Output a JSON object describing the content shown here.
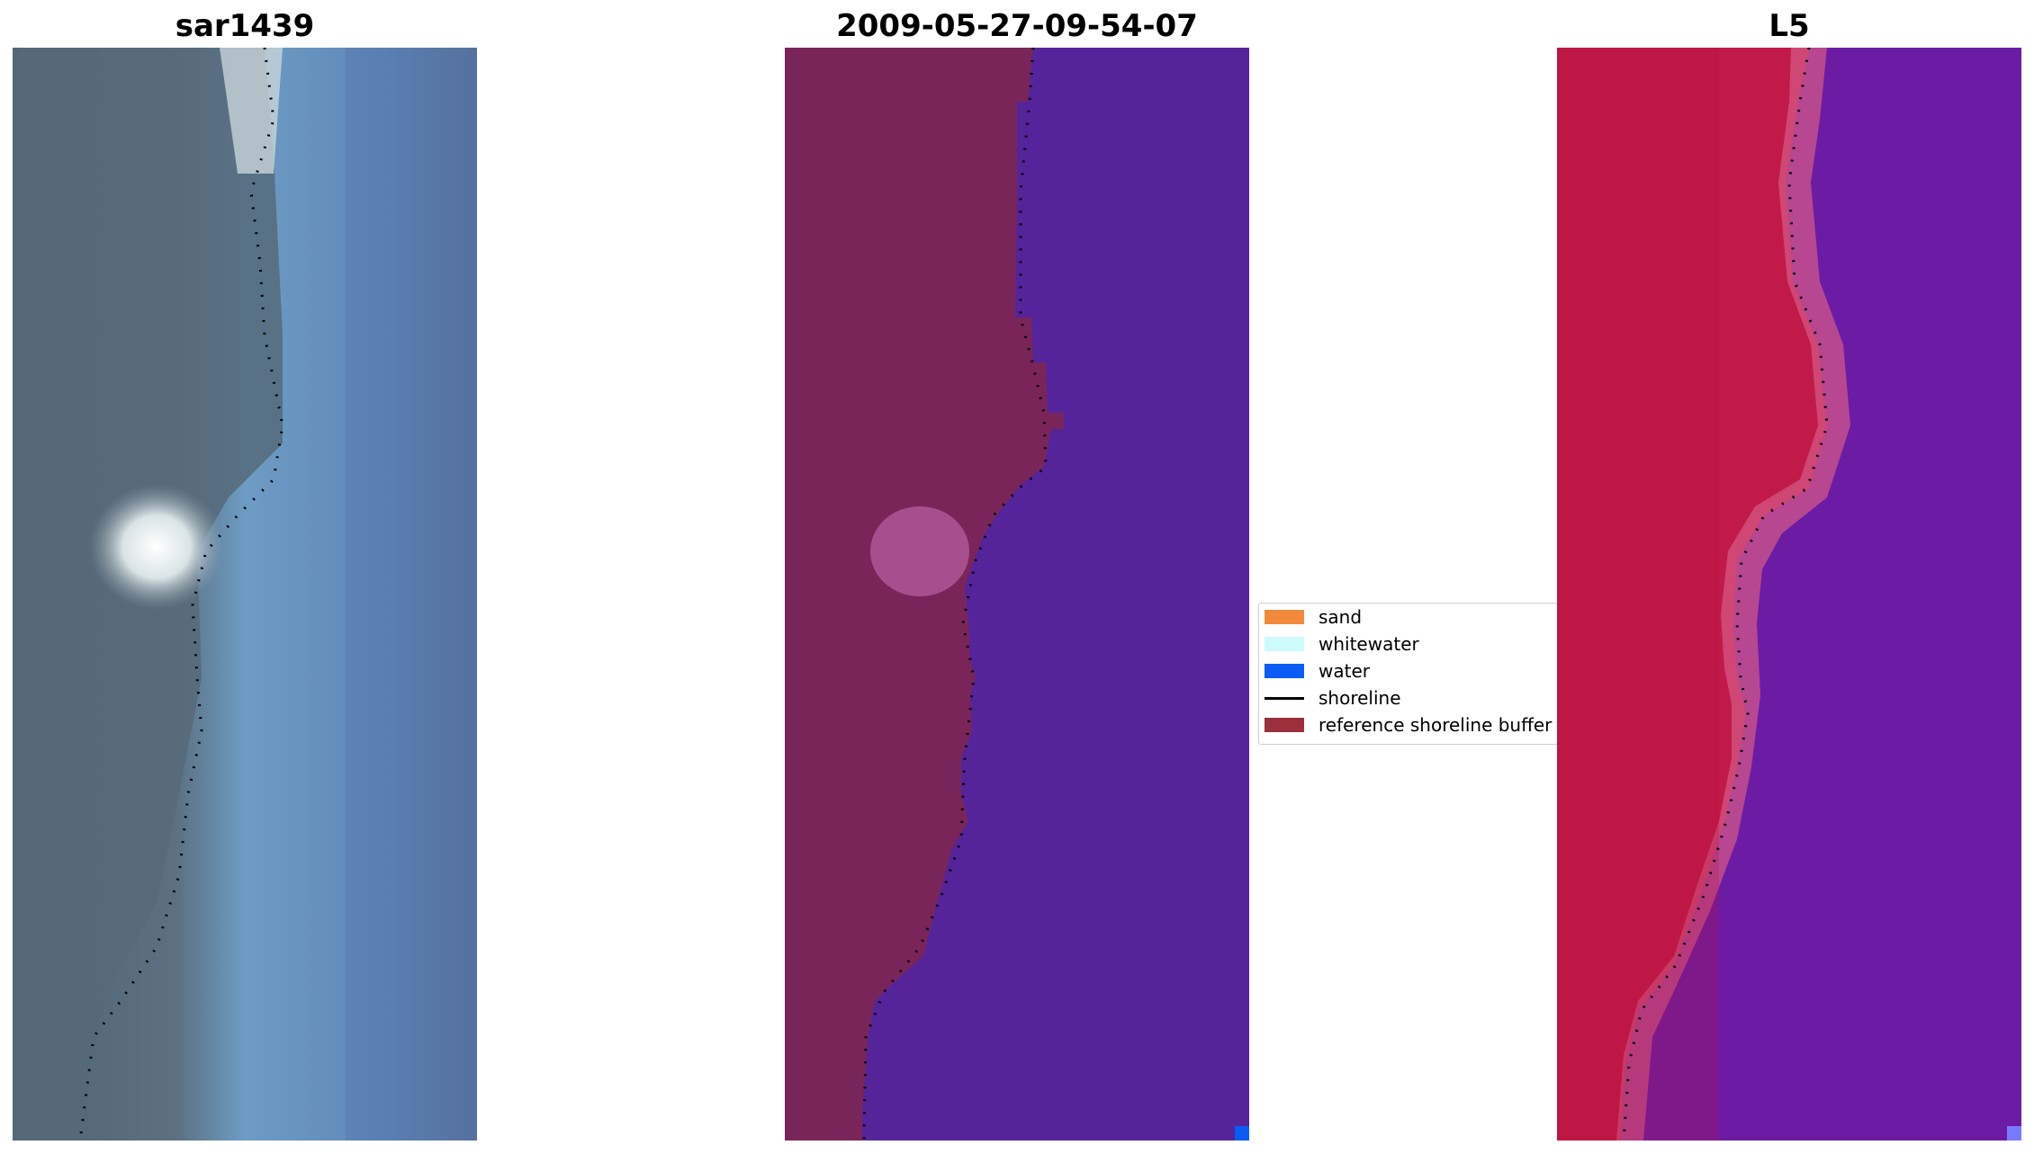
{
  "panels": [
    {
      "title": "sar1439"
    },
    {
      "title": "2009-05-27-09-54-07"
    },
    {
      "title": "L5"
    }
  ],
  "legend": {
    "items": [
      {
        "label": "sand",
        "color": "#f28a3c",
        "kind": "patch"
      },
      {
        "label": "whitewater",
        "color": "#ccfbfa",
        "kind": "patch"
      },
      {
        "label": "water",
        "color": "#0a5cf5",
        "kind": "patch"
      },
      {
        "label": "shoreline",
        "color": "#000000",
        "kind": "line"
      },
      {
        "label": "reference shoreline buffer",
        "color": "#9b2f3b",
        "kind": "patch"
      }
    ]
  },
  "colors": {
    "rgb_water": "#6a9ec8",
    "rgb_land": "#55687a",
    "class_water": "#55249a",
    "class_land": "#7a2559",
    "mndwi_land": "#c21a48",
    "mndwi_water": "#6c1ca4"
  }
}
